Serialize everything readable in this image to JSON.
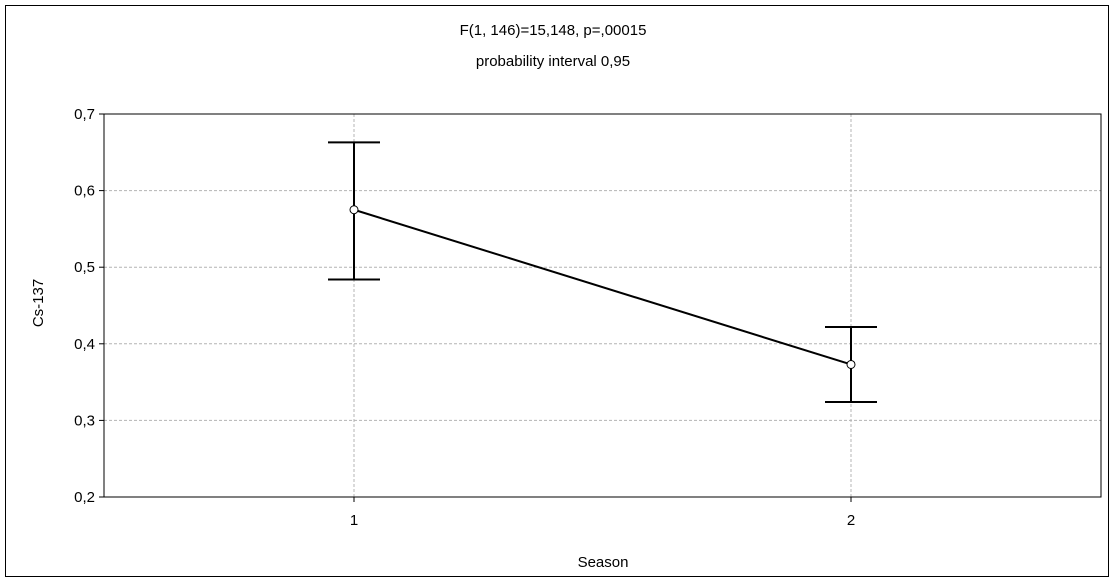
{
  "chart_data": {
    "type": "line",
    "title": "F(1, 146)=15,148, p=,00015",
    "subtitle": "probability interval 0,95",
    "xlabel": "Season",
    "ylabel": "Cs-137",
    "categories": [
      "1",
      "2"
    ],
    "series": [
      {
        "values": [
          0.575,
          0.373
        ],
        "lower": [
          0.484,
          0.324
        ],
        "upper": [
          0.663,
          0.422
        ]
      }
    ],
    "ylim": [
      0.2,
      0.7
    ],
    "yticks": [
      0.2,
      0.3,
      0.4,
      0.5,
      0.6,
      0.7
    ],
    "ytick_labels": [
      "0,2",
      "0,3",
      "0,4",
      "0,5",
      "0,6",
      "0,7"
    ],
    "grid": true,
    "colors": {
      "line": "#000000",
      "grid": "#b4b4b4",
      "marker_fill": "#ffffff"
    }
  }
}
